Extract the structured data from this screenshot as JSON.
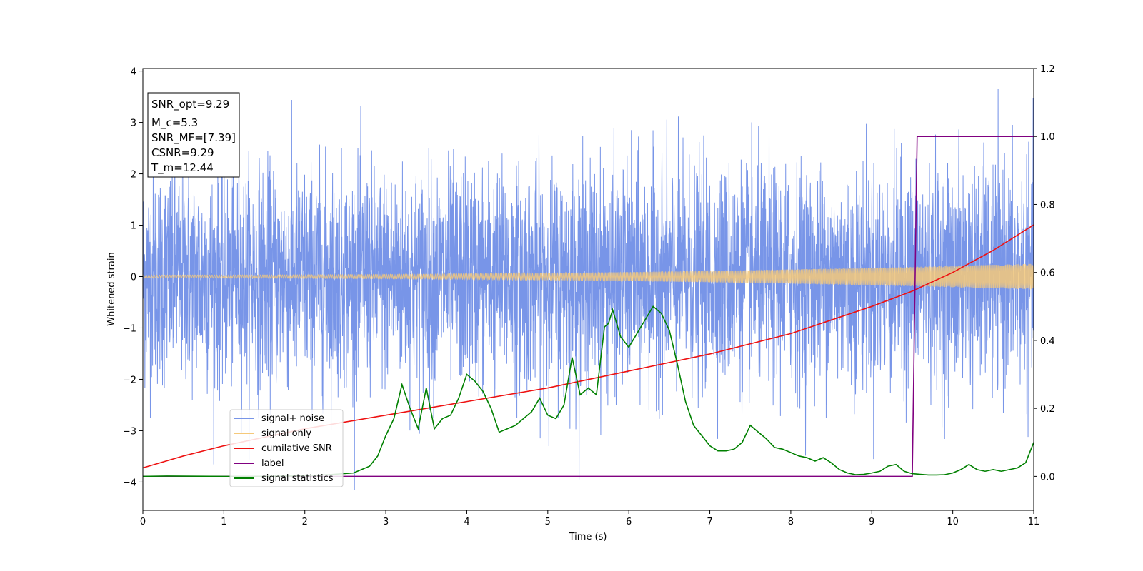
{
  "chart_data": {
    "type": "line",
    "xlabel": "Time (s)",
    "ylabel": "Whitened strain",
    "xlim": [
      0,
      11
    ],
    "ylim": [
      -4.55,
      4.05
    ],
    "y2lim": [
      -0.1,
      1.2
    ],
    "xticks": [
      0,
      1,
      2,
      3,
      4,
      5,
      6,
      7,
      8,
      9,
      10,
      11
    ],
    "yticks": [
      -4,
      -3,
      -2,
      -1,
      0,
      1,
      2,
      3,
      4
    ],
    "y2ticks": [
      "0.0",
      "0.2",
      "0.4",
      "0.6",
      "0.8",
      "1.0",
      "1.2"
    ],
    "grid": false,
    "legend_position": "lower-left",
    "info_box": [
      "SNR_opt=9.29",
      "M_c=5.3",
      "SNR_MF=[7.39]",
      "CSNR=9.29",
      "T_m=12.44"
    ],
    "series": [
      {
        "name": "signal+ noise",
        "axis": "left",
        "color": "#7895e8",
        "kind": "noise",
        "mean": 0,
        "std": 1.0,
        "range_approx": [
          -4.15,
          3.65
        ]
      },
      {
        "name": "signal only",
        "axis": "left",
        "color": "#f5c97a",
        "kind": "chirp",
        "amplitude_start": 0.03,
        "amplitude_end": 0.25
      },
      {
        "name": "cumilative SNR",
        "axis": "right",
        "color": "#ee1111",
        "x": [
          0,
          0.5,
          1,
          2,
          3,
          4,
          5,
          6,
          7,
          8,
          9,
          9.5,
          10,
          10.5,
          11
        ],
        "y": [
          0.025,
          0.06,
          0.09,
          0.14,
          0.18,
          0.22,
          0.26,
          0.31,
          0.36,
          0.42,
          0.5,
          0.545,
          0.6,
          0.665,
          0.74
        ]
      },
      {
        "name": "label",
        "axis": "right",
        "color": "#800080",
        "x": [
          0,
          9.5,
          9.56,
          11
        ],
        "y": [
          0,
          0,
          1,
          1
        ]
      },
      {
        "name": "signal statistics",
        "axis": "right",
        "color": "#008000",
        "x": [
          0,
          0.3,
          1.0,
          1.5,
          2.0,
          2.3,
          2.6,
          2.8,
          2.9,
          3.0,
          3.1,
          3.2,
          3.3,
          3.4,
          3.5,
          3.6,
          3.7,
          3.8,
          3.9,
          4.0,
          4.1,
          4.2,
          4.3,
          4.4,
          4.5,
          4.6,
          4.7,
          4.8,
          4.9,
          5.0,
          5.1,
          5.2,
          5.3,
          5.4,
          5.5,
          5.6,
          5.7,
          5.75,
          5.8,
          5.9,
          6.0,
          6.1,
          6.2,
          6.3,
          6.4,
          6.5,
          6.6,
          6.7,
          6.8,
          6.9,
          7.0,
          7.1,
          7.2,
          7.3,
          7.4,
          7.5,
          7.6,
          7.7,
          7.8,
          7.9,
          8.0,
          8.1,
          8.2,
          8.3,
          8.4,
          8.5,
          8.6,
          8.7,
          8.8,
          8.9,
          9.0,
          9.1,
          9.2,
          9.3,
          9.4,
          9.5,
          9.6,
          9.7,
          9.8,
          9.9,
          10.0,
          10.1,
          10.2,
          10.3,
          10.4,
          10.5,
          10.6,
          10.7,
          10.8,
          10.9,
          11.0
        ],
        "y": [
          0.0,
          0.001,
          0.0,
          0.0,
          0.002,
          0.005,
          0.01,
          0.03,
          0.06,
          0.12,
          0.17,
          0.27,
          0.2,
          0.14,
          0.26,
          0.14,
          0.17,
          0.18,
          0.23,
          0.3,
          0.28,
          0.25,
          0.2,
          0.13,
          0.14,
          0.15,
          0.17,
          0.19,
          0.23,
          0.18,
          0.17,
          0.21,
          0.35,
          0.24,
          0.26,
          0.24,
          0.44,
          0.45,
          0.49,
          0.41,
          0.38,
          0.42,
          0.46,
          0.5,
          0.48,
          0.43,
          0.33,
          0.22,
          0.15,
          0.12,
          0.09,
          0.075,
          0.075,
          0.08,
          0.1,
          0.15,
          0.13,
          0.11,
          0.085,
          0.08,
          0.07,
          0.06,
          0.055,
          0.045,
          0.055,
          0.04,
          0.02,
          0.01,
          0.005,
          0.006,
          0.01,
          0.015,
          0.03,
          0.035,
          0.015,
          0.008,
          0.006,
          0.004,
          0.004,
          0.005,
          0.01,
          0.02,
          0.035,
          0.02,
          0.015,
          0.02,
          0.015,
          0.02,
          0.025,
          0.04,
          0.1
        ]
      }
    ]
  }
}
